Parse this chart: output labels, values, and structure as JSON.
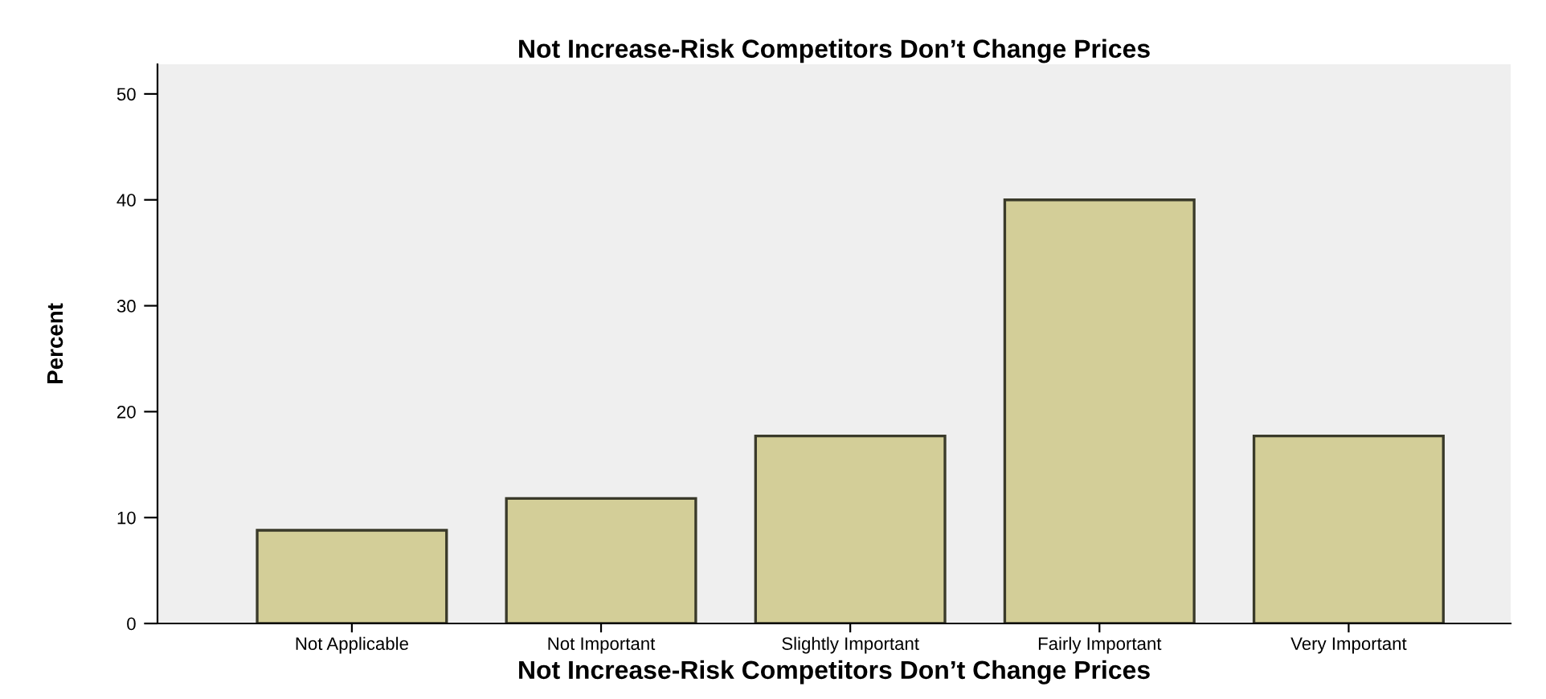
{
  "chart_data": {
    "type": "bar",
    "title": "Not Increase-Risk Competitors Don’t Change Prices",
    "xlabel": "Not Increase-Risk Competitors Don’t Change Prices",
    "ylabel": "Percent",
    "categories": [
      "Not Applicable",
      "Not Important",
      "Slightly Important",
      "Fairly Important",
      "Very Important"
    ],
    "values": [
      8.8,
      11.8,
      17.7,
      40.0,
      17.7
    ],
    "color": "#d3ce98",
    "ylim": [
      0,
      52.8
    ],
    "yticks": [
      0,
      10,
      20,
      30,
      40,
      50
    ],
    "grid": false
  }
}
